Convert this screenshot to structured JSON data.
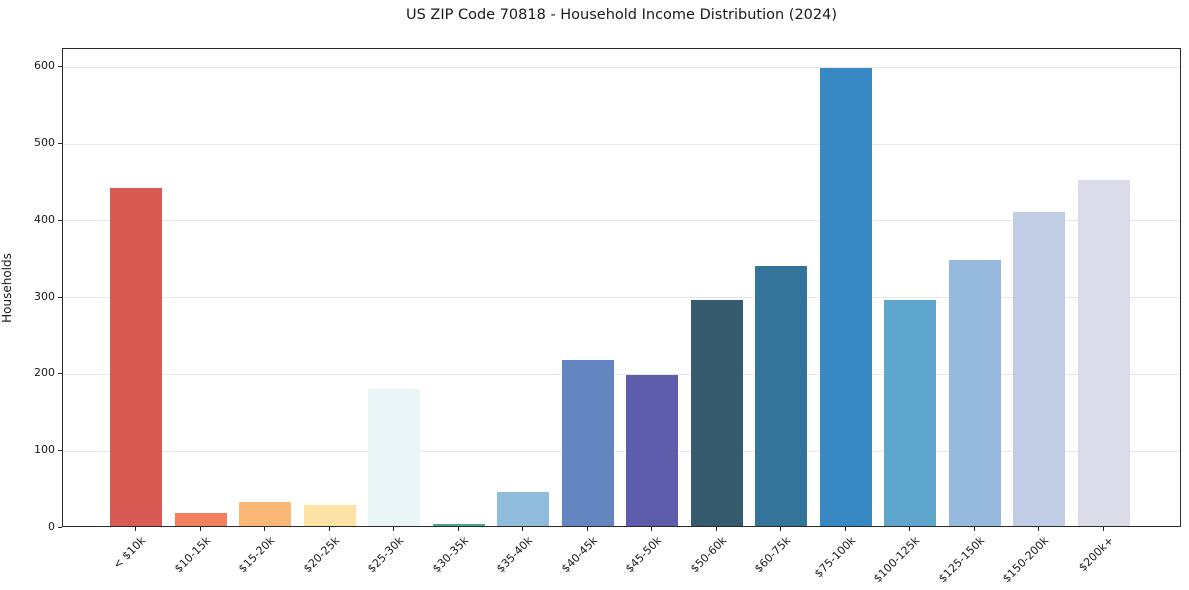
{
  "figure": {
    "background": "#ffffff"
  },
  "chart_data": {
    "type": "bar",
    "title": "US ZIP Code 70818 - Household Income Distribution (2024)",
    "xlabel": "",
    "ylabel": "Households",
    "categories": [
      "< $10k",
      "$10-15k",
      "$15-20k",
      "$20-25k",
      "$25-30k",
      "$30-35k",
      "$35-40k",
      "$40-45k",
      "$45-50k",
      "$50-60k",
      "$60-75k",
      "$75-100k",
      "$100-125k",
      "$125-150k",
      "$150-200k",
      "$200k+"
    ],
    "values": [
      440,
      17,
      31,
      28,
      178,
      2,
      44,
      216,
      197,
      295,
      339,
      596,
      295,
      347,
      409,
      451
    ],
    "bar_colors": [
      "#d85a52",
      "#f2805e",
      "#fab876",
      "#fde2a6",
      "#eaf5f7",
      "#4ba58b",
      "#8ebcda",
      "#6386c1",
      "#5d5dac",
      "#365a6e",
      "#34749b",
      "#3889c3",
      "#5fa6cf",
      "#95b9dc",
      "#c1cde5",
      "#dbdbe9"
    ],
    "yticks": [
      0,
      100,
      200,
      300,
      400,
      500,
      600
    ],
    "ylim": [
      0,
      624
    ],
    "grid": "horizontal",
    "grid_color": "#e7e7ef",
    "legend_position": "none",
    "text_color": "#1a1a1a",
    "x_tick_rotation_deg": 45
  }
}
